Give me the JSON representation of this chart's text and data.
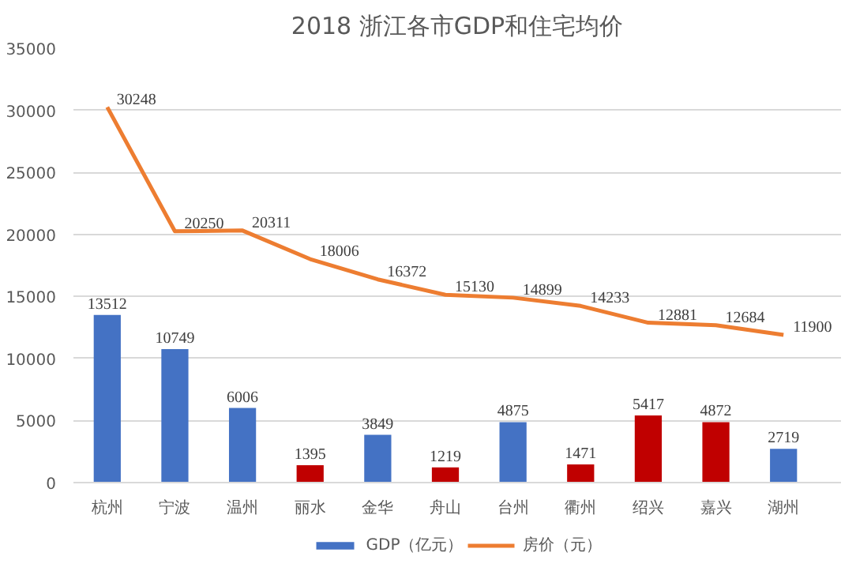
{
  "chart_data": {
    "type": "bar",
    "title": "2018 浙江各市GDP和住宅均价",
    "categories": [
      "杭州",
      "宁波",
      "温州",
      "丽水",
      "金华",
      "舟山",
      "台州",
      "衢州",
      "绍兴",
      "嘉兴",
      "湖州"
    ],
    "series": [
      {
        "name": "GDP（亿元）",
        "color": "#4472c4",
        "colors": [
          "#4472c4",
          "#4472c4",
          "#4472c4",
          "#c00000",
          "#4472c4",
          "#c00000",
          "#4472c4",
          "#c00000",
          "#c00000",
          "#c00000",
          "#4472c4"
        ],
        "values": [
          13512,
          10749,
          6006,
          1395,
          3849,
          1219,
          4875,
          1471,
          5417,
          4872,
          2719
        ]
      },
      {
        "name": "房价（元）",
        "type": "line",
        "color": "#ed7d31",
        "values": [
          30248,
          20250,
          20311,
          18006,
          16372,
          15130,
          14899,
          14233,
          12881,
          12684,
          11900
        ]
      }
    ],
    "ylim": [
      0,
      35000
    ],
    "yticks": [
      0,
      5000,
      10000,
      15000,
      20000,
      25000,
      30000,
      35000
    ],
    "grid": "y",
    "legend": "bottom",
    "data_labels": true
  }
}
